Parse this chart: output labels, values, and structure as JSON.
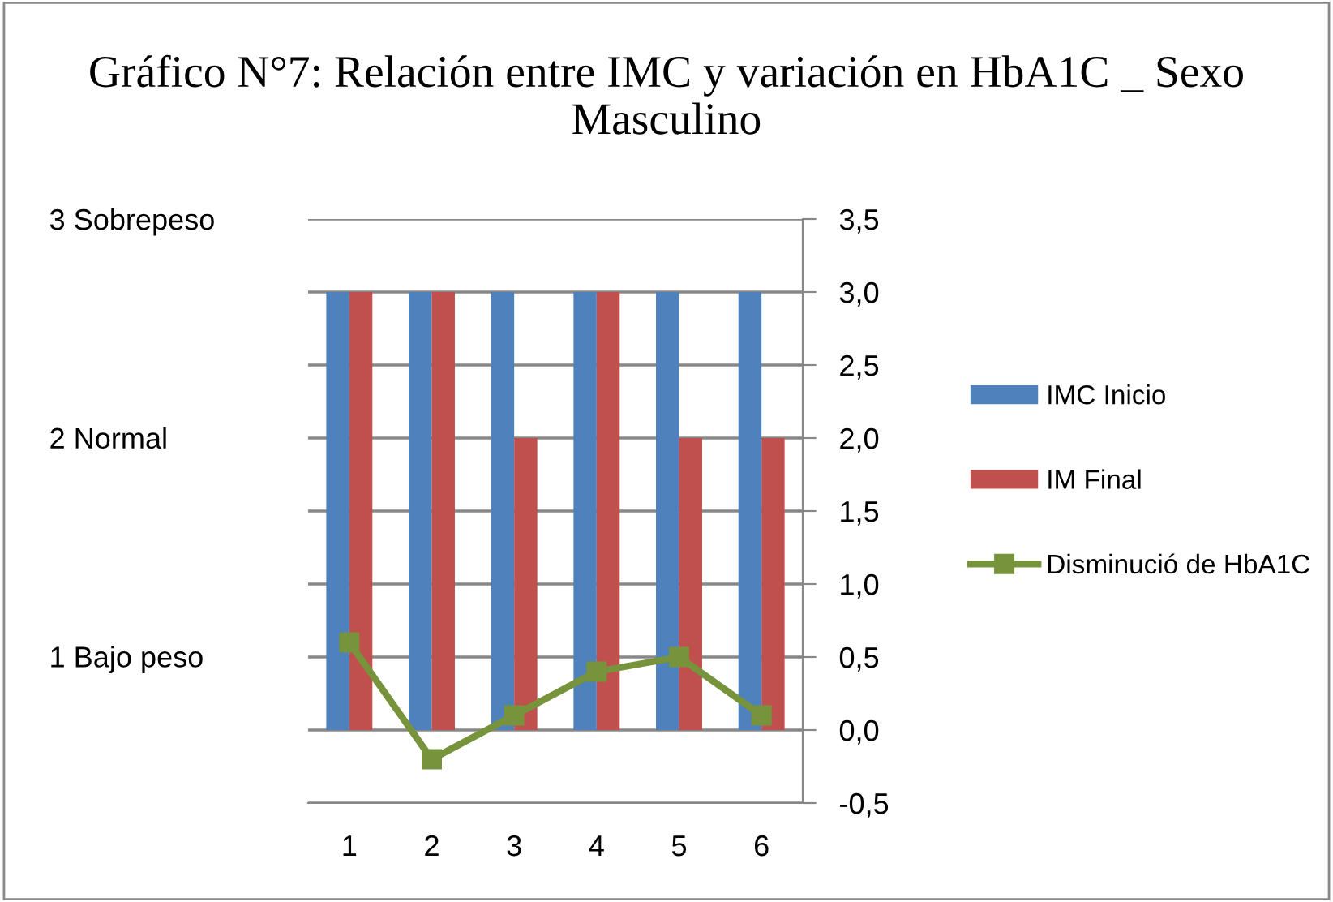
{
  "chart_data": {
    "type": "bar",
    "title": "Gráfico N°7: Relación entre IMC y variación en HbA1C _ Sexo Masculino",
    "categories": [
      "1",
      "2",
      "3",
      "4",
      "5",
      "6"
    ],
    "series": [
      {
        "name": "IMC Inicio",
        "color": "#4f81bd",
        "values": [
          3,
          3,
          3,
          3,
          3,
          3
        ]
      },
      {
        "name": "IM Final",
        "color": "#c0504d",
        "values": [
          3,
          3,
          2,
          3,
          2,
          2
        ]
      },
      {
        "name": "Disminució de HbA1C",
        "type": "line",
        "color": "#77933c",
        "marker": "square",
        "values": [
          0.6,
          -0.2,
          0.1,
          0.4,
          0.5,
          0.1
        ]
      }
    ],
    "ylim": [
      -0.5,
      3.5
    ],
    "yticks": [
      {
        "value": -0.5,
        "label": "-0,5"
      },
      {
        "value": 0,
        "label": "0,0"
      },
      {
        "value": 0.5,
        "label": "0,5"
      },
      {
        "value": 1,
        "label": "1,0"
      },
      {
        "value": 1.5,
        "label": "1,5"
      },
      {
        "value": 2,
        "label": "2,0"
      },
      {
        "value": 2.5,
        "label": "2,5"
      },
      {
        "value": 3,
        "label": "3,0"
      },
      {
        "value": 3.5,
        "label": "3,5"
      }
    ],
    "y2lim": [
      0.33,
      3
    ],
    "y2ticks": [
      {
        "value": 3,
        "label": "3 Sobrepeso"
      },
      {
        "value": 2,
        "label": "2 Normal"
      },
      {
        "value": 1,
        "label": "1 Bajo peso"
      }
    ],
    "grid": "y",
    "legend": "right"
  }
}
